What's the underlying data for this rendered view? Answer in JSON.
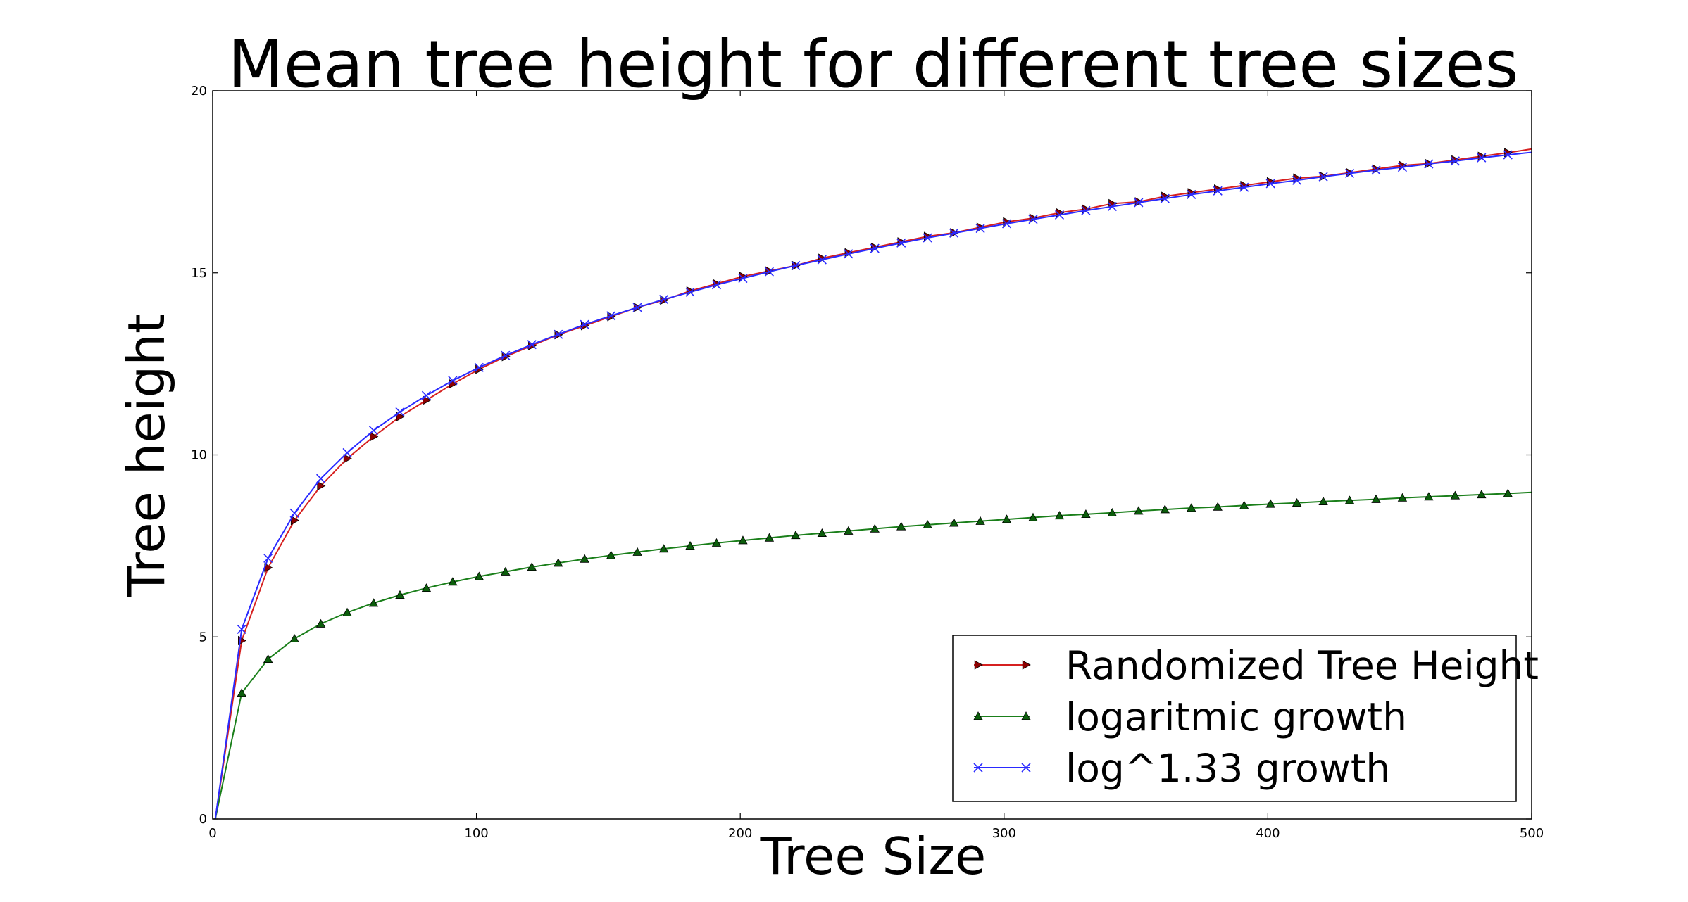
{
  "chart_data": {
    "type": "line",
    "title": "Mean tree height for different tree sizes",
    "xlabel": "Tree Size",
    "ylabel": "Tree height",
    "xlim": [
      0,
      500
    ],
    "ylim": [
      0,
      20
    ],
    "xticks": [
      0,
      100,
      200,
      300,
      400,
      500
    ],
    "yticks": [
      0,
      5,
      10,
      15,
      20
    ],
    "grid": false,
    "legend_position": "lower-right",
    "x": [
      1,
      11,
      21,
      31,
      41,
      51,
      61,
      71,
      81,
      91,
      101,
      111,
      121,
      131,
      141,
      151,
      161,
      171,
      181,
      191,
      201,
      211,
      221,
      231,
      241,
      251,
      261,
      271,
      281,
      291,
      301,
      311,
      321,
      331,
      341,
      351,
      361,
      371,
      381,
      391,
      401,
      411,
      421,
      431,
      441,
      451,
      461,
      471,
      481,
      491,
      500
    ],
    "series": [
      {
        "name": "Randomized Tree Height",
        "color": "#d62020",
        "marker": "triangle-right",
        "marker_color": "#8b0000",
        "values": [
          0.0,
          4.9,
          6.9,
          8.2,
          9.15,
          9.9,
          10.5,
          11.05,
          11.5,
          11.95,
          12.35,
          12.7,
          13.0,
          13.3,
          13.55,
          13.8,
          14.05,
          14.25,
          14.5,
          14.7,
          14.9,
          15.05,
          15.2,
          15.4,
          15.55,
          15.7,
          15.85,
          16.0,
          16.1,
          16.25,
          16.4,
          16.5,
          16.65,
          16.75,
          16.9,
          16.95,
          17.1,
          17.2,
          17.3,
          17.4,
          17.5,
          17.6,
          17.65,
          17.75,
          17.85,
          17.95,
          18.0,
          18.1,
          18.2,
          18.3,
          18.4
        ]
      },
      {
        "name": "logaritmic growth",
        "color": "#1a7f1a",
        "marker": "triangle-up",
        "marker_color": "#0b5d0b",
        "values": [
          0.0,
          3.46,
          4.39,
          4.95,
          5.36,
          5.67,
          5.93,
          6.15,
          6.34,
          6.51,
          6.66,
          6.79,
          6.92,
          7.03,
          7.14,
          7.24,
          7.33,
          7.42,
          7.5,
          7.58,
          7.65,
          7.72,
          7.79,
          7.85,
          7.91,
          7.97,
          8.03,
          8.08,
          8.13,
          8.18,
          8.23,
          8.28,
          8.33,
          8.37,
          8.41,
          8.46,
          8.5,
          8.54,
          8.57,
          8.61,
          8.65,
          8.68,
          8.72,
          8.75,
          8.78,
          8.82,
          8.85,
          8.88,
          8.91,
          8.94,
          8.97
        ]
      },
      {
        "name": "log^1.33 growth",
        "color": "#2a2aff",
        "marker": "x",
        "marker_color": "#2a2aff",
        "values": [
          0.0,
          5.21,
          7.16,
          8.4,
          9.35,
          10.06,
          10.67,
          11.18,
          11.63,
          12.04,
          12.4,
          12.73,
          13.03,
          13.31,
          13.58,
          13.82,
          14.05,
          14.27,
          14.47,
          14.67,
          14.85,
          15.03,
          15.2,
          15.36,
          15.52,
          15.67,
          15.82,
          15.96,
          16.09,
          16.22,
          16.35,
          16.47,
          16.59,
          16.71,
          16.82,
          16.93,
          17.04,
          17.15,
          17.25,
          17.35,
          17.45,
          17.54,
          17.64,
          17.73,
          17.82,
          17.9,
          17.99,
          18.07,
          18.16,
          18.24,
          18.31
        ]
      }
    ]
  }
}
